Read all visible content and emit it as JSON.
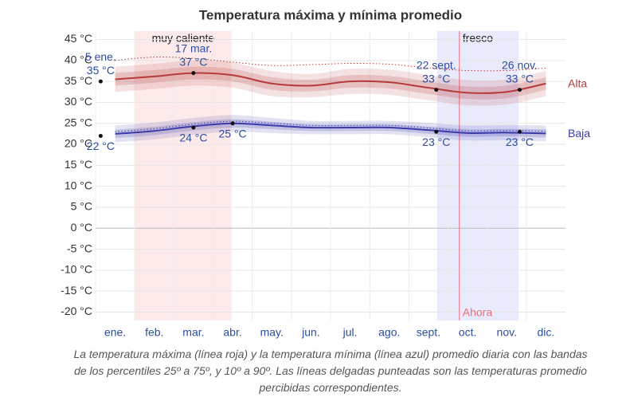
{
  "chart_data": {
    "type": "line",
    "title": "Temperatura máxima y mínima promedio",
    "caption": "La temperatura máxima (línea roja) y la temperatura mínima (línea azul) promedio diaria con las bandas de los percentiles 25º a 75º, y 10º a 90º. Las líneas delgadas punteadas son las temperaturas promedio percibidas correspondientes.",
    "categories": [
      "ene.",
      "feb.",
      "mar.",
      "abr.",
      "may.",
      "jun.",
      "jul.",
      "ago.",
      "sept.",
      "oct.",
      "nov.",
      "dic."
    ],
    "ylim": [
      -22,
      47
    ],
    "yticks": [
      {
        "value": -20,
        "label": "-20 °C"
      },
      {
        "value": -15,
        "label": "-15 °C"
      },
      {
        "value": -10,
        "label": "-10 °C"
      },
      {
        "value": -5,
        "label": "-5 °C"
      },
      {
        "value": 0,
        "label": "0 °C"
      },
      {
        "value": 5,
        "label": "5 °C"
      },
      {
        "value": 10,
        "label": "10 °C"
      },
      {
        "value": 15,
        "label": "15 °C"
      },
      {
        "value": 20,
        "label": "20 °C"
      },
      {
        "value": 25,
        "label": "25 °C"
      },
      {
        "value": 30,
        "label": "30 °C"
      },
      {
        "value": 35,
        "label": "35 °C"
      },
      {
        "value": 40,
        "label": "40 °C"
      },
      {
        "value": 45,
        "label": "45 °C"
      }
    ],
    "grid": true,
    "series": [
      {
        "name": "Alta",
        "color": "#b63c3c",
        "values": [
          35.5,
          36.2,
          37,
          36.5,
          34.5,
          34,
          35,
          34.8,
          33.5,
          32.3,
          32.5,
          34.5
        ],
        "p10": [
          32.5,
          33.2,
          34,
          33.5,
          31.5,
          31.2,
          32,
          31.8,
          30.5,
          29.3,
          29.5,
          31.5
        ],
        "p25": [
          34,
          34.7,
          35.5,
          35,
          33,
          32.6,
          33.5,
          33.3,
          32,
          30.8,
          31,
          33
        ],
        "p75": [
          37,
          37.7,
          38.5,
          38,
          36,
          35.4,
          36.5,
          36.3,
          35,
          33.8,
          34,
          36
        ],
        "p90": [
          38.5,
          39.2,
          40,
          39.5,
          37.5,
          36.8,
          38,
          37.8,
          36.5,
          35.3,
          35.5,
          37.5
        ],
        "perceived": [
          40,
          40.8,
          40.5,
          39.6,
          38.8,
          39,
          39.3,
          39.1,
          38.2,
          37.6,
          37.6,
          38.2
        ]
      },
      {
        "name": "Baja",
        "color": "#3a3aaa",
        "values": [
          22.5,
          23.2,
          24.3,
          25,
          24.5,
          24,
          24,
          24,
          23.4,
          22.7,
          22.8,
          22.6
        ],
        "p10": [
          20.5,
          21.2,
          22.3,
          23,
          22.7,
          22.4,
          22.4,
          22.4,
          21.7,
          20.9,
          21,
          20.7
        ],
        "p25": [
          21.5,
          22.2,
          23.3,
          24,
          23.6,
          23.2,
          23.2,
          23.2,
          22.5,
          21.8,
          21.9,
          21.6
        ],
        "p75": [
          23.5,
          24.2,
          25.3,
          26,
          25.4,
          24.8,
          24.8,
          24.8,
          24.3,
          23.6,
          23.7,
          23.6
        ],
        "p90": [
          24.5,
          25.2,
          26.3,
          27,
          26.3,
          25.6,
          25.6,
          25.6,
          25.1,
          24.5,
          24.6,
          24.5
        ],
        "perceived": [
          23,
          23.7,
          24.8,
          25.5,
          25,
          24.5,
          24.5,
          24.5,
          23.9,
          23.2,
          23.3,
          23.1
        ]
      }
    ],
    "regions": [
      {
        "label": "muy caliente",
        "start": 1,
        "end": 3.47,
        "color": "#fdeaea"
      },
      {
        "label": "fresco",
        "start": 8.72,
        "end": 10.8,
        "color": "#eaeafd"
      }
    ],
    "now": {
      "label": "Ahora",
      "x": 9.29,
      "color": "#e8707a"
    },
    "annotations": [
      {
        "series": 0,
        "x": 0.13,
        "date": "5 ene.",
        "value": 35,
        "value_label": "35 °C"
      },
      {
        "series": 0,
        "x": 2.5,
        "date": "17 mar.",
        "value": 37,
        "value_label": "37 °C"
      },
      {
        "series": 0,
        "x": 8.7,
        "date": "22 sept.",
        "value": 33,
        "value_label": "33 °C"
      },
      {
        "series": 0,
        "x": 10.83,
        "date": "26 nov.",
        "value": 33,
        "value_label": "33 °C"
      },
      {
        "series": 1,
        "x": 0.13,
        "value": 22,
        "value_label": "22 °C"
      },
      {
        "series": 1,
        "x": 2.5,
        "value": 24,
        "value_label": "24 °C"
      },
      {
        "series": 1,
        "x": 3.5,
        "value": 25,
        "value_label": "25 °C"
      },
      {
        "series": 1,
        "x": 8.7,
        "value": 23,
        "value_label": "23 °C"
      },
      {
        "series": 1,
        "x": 10.83,
        "value": 23,
        "value_label": "23 °C"
      }
    ]
  }
}
